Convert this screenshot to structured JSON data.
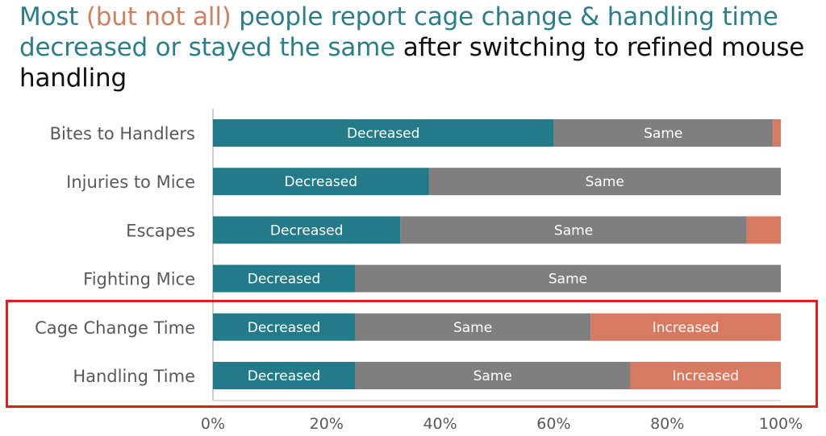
{
  "title": {
    "part1": "Most ",
    "part2": "(but not all)",
    "part3": " people report cage change & handling time decreased or stayed the same",
    "part4": " after switching to refined mouse handling"
  },
  "colors": {
    "decreased": "#237b8a",
    "same": "#7f7f7f",
    "increased": "#d77a61",
    "title_teal": "#2a7f8a",
    "title_orange": "#d0805f",
    "highlight": "#e31b1b"
  },
  "chart_data": {
    "type": "bar",
    "orientation": "horizontal",
    "stacked": "100%",
    "categories": [
      "Bites to Handlers",
      "Injuries to Mice",
      "Escapes",
      "Fighting Mice",
      "Cage Change Time",
      "Handling Time"
    ],
    "series": [
      {
        "name": "Decreased",
        "values": [
          60,
          38,
          33,
          25,
          25,
          25
        ]
      },
      {
        "name": "Same",
        "values": [
          38.6,
          62,
          61,
          75,
          41.5,
          48.5
        ]
      },
      {
        "name": "Increased",
        "values": [
          1.4,
          0,
          6,
          0,
          33.5,
          26.5
        ]
      }
    ],
    "segment_labels_shown": [
      [
        "Decreased",
        "Same",
        ""
      ],
      [
        "Decreased",
        "Same",
        ""
      ],
      [
        "Decreased",
        "Same",
        ""
      ],
      [
        "Decreased",
        "Same",
        ""
      ],
      [
        "Decreased",
        "Same",
        "Increased"
      ],
      [
        "Decreased",
        "Same",
        "Increased"
      ]
    ],
    "xlim": [
      0,
      100
    ],
    "xticks": [
      "0%",
      "20%",
      "40%",
      "60%",
      "80%",
      "100%"
    ],
    "grid": false,
    "legend": "none",
    "highlighted_categories": [
      "Cage Change Time",
      "Handling Time"
    ]
  }
}
